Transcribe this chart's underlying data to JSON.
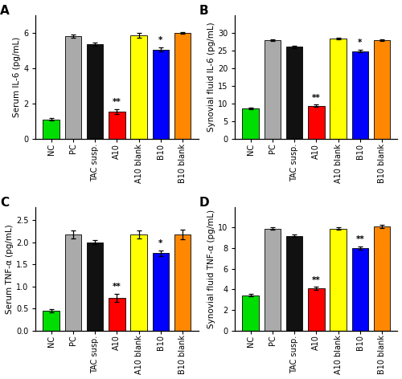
{
  "panels": [
    {
      "label": "A",
      "ylabel": "Serum IL-6 (pg/mL)",
      "ylim": [
        0,
        7
      ],
      "yticks": [
        0,
        2,
        4,
        6
      ],
      "categories": [
        "NC",
        "PC",
        "TAC susp.",
        "A10",
        "A10 blank",
        "B10",
        "B10 blank"
      ],
      "values": [
        1.1,
        5.8,
        5.35,
        1.55,
        5.85,
        5.05,
        6.0
      ],
      "errors": [
        0.07,
        0.1,
        0.1,
        0.13,
        0.15,
        0.12,
        0.05
      ],
      "colors": [
        "#00dd00",
        "#aaaaaa",
        "#111111",
        "#ff0000",
        "#ffff00",
        "#0000ff",
        "#ff8800"
      ],
      "annotations": [
        "",
        "",
        "",
        "**",
        "",
        "*",
        ""
      ]
    },
    {
      "label": "B",
      "ylabel": "Synovial fluid IL-6 (pg/mL)",
      "ylim": [
        0,
        35
      ],
      "yticks": [
        0,
        5,
        10,
        15,
        20,
        25,
        30
      ],
      "categories": [
        "NC",
        "PC",
        "TAC susp.",
        "A10",
        "A10 blank",
        "B10",
        "B10 blank"
      ],
      "values": [
        8.7,
        28.0,
        26.0,
        9.4,
        28.4,
        24.8,
        28.0
      ],
      "errors": [
        0.25,
        0.25,
        0.35,
        0.28,
        0.18,
        0.38,
        0.22
      ],
      "colors": [
        "#00dd00",
        "#aaaaaa",
        "#111111",
        "#ff0000",
        "#ffff00",
        "#0000ff",
        "#ff8800"
      ],
      "annotations": [
        "",
        "",
        "",
        "**",
        "",
        "*",
        ""
      ]
    },
    {
      "label": "C",
      "ylabel": "Serum TNF-α (pg/mL)",
      "ylim": [
        0,
        2.8
      ],
      "yticks": [
        0.0,
        0.5,
        1.0,
        1.5,
        2.0,
        2.5
      ],
      "categories": [
        "NC",
        "PC",
        "TAC susp.",
        "A10",
        "A10 blank",
        "B10",
        "B10 blank"
      ],
      "values": [
        0.45,
        2.17,
        2.0,
        0.75,
        2.17,
        1.75,
        2.17
      ],
      "errors": [
        0.04,
        0.09,
        0.05,
        0.09,
        0.09,
        0.07,
        0.11
      ],
      "colors": [
        "#00dd00",
        "#aaaaaa",
        "#111111",
        "#ff0000",
        "#ffff00",
        "#0000ff",
        "#ff8800"
      ],
      "annotations": [
        "",
        "",
        "",
        "**",
        "",
        "*",
        ""
      ]
    },
    {
      "label": "D",
      "ylabel": "Synovial fluid TNF-α (pg/mL)",
      "ylim": [
        0,
        12
      ],
      "yticks": [
        0,
        2,
        4,
        6,
        8,
        10
      ],
      "categories": [
        "NC",
        "PC",
        "TAC susp.",
        "A10",
        "A10 blank",
        "B10",
        "B10 blank"
      ],
      "values": [
        3.45,
        9.9,
        9.2,
        4.1,
        9.9,
        8.0,
        10.1
      ],
      "errors": [
        0.12,
        0.12,
        0.15,
        0.13,
        0.12,
        0.18,
        0.14
      ],
      "colors": [
        "#00dd00",
        "#aaaaaa",
        "#111111",
        "#ff0000",
        "#ffff00",
        "#0000ff",
        "#ff8800"
      ],
      "annotations": [
        "",
        "",
        "",
        "**",
        "",
        "**",
        ""
      ]
    }
  ],
  "figure_bg": "#ffffff",
  "bar_width": 0.75,
  "label_fontsize": 7.0,
  "tick_fontsize": 7.0,
  "ylabel_fontsize": 7.5,
  "ann_fontsize": 7.5
}
